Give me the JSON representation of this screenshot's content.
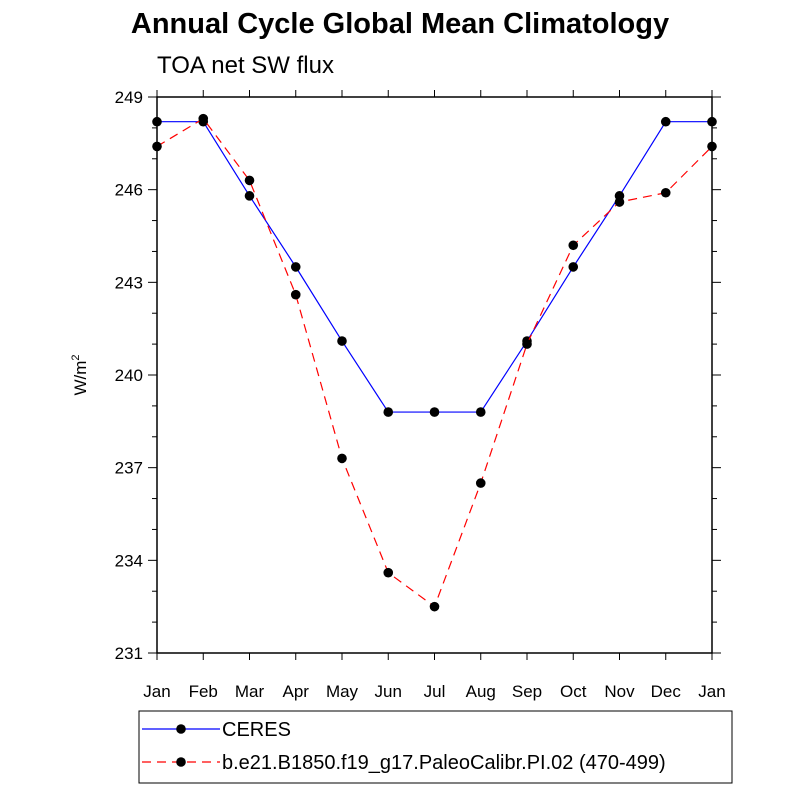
{
  "chart_data": {
    "type": "line",
    "title": "Annual Cycle Global Mean Climatology",
    "subtitle": "TOA net SW flux",
    "xlabel": "",
    "ylabel": "W/m",
    "ylabel_superscript": "2",
    "categories": [
      "Jan",
      "Feb",
      "Mar",
      "Apr",
      "May",
      "Jun",
      "Jul",
      "Aug",
      "Sep",
      "Oct",
      "Nov",
      "Dec",
      "Jan"
    ],
    "ylim": [
      231,
      249
    ],
    "yticks": [
      "231",
      "234",
      "237",
      "240",
      "243",
      "246",
      "249"
    ],
    "grid": false,
    "legend_position": "bottom",
    "series": [
      {
        "name": "CERES",
        "color": "#0000ff",
        "style": "solid",
        "marker": "circle",
        "values": [
          248.2,
          248.2,
          245.8,
          243.5,
          241.1,
          238.8,
          238.8,
          238.8,
          241.1,
          243.5,
          245.8,
          248.2,
          248.2
        ]
      },
      {
        "name": "b.e21.B1850.f19_g17.PaleoCalibr.PI.02 (470-499)",
        "color": "#ff0000",
        "style": "dashed",
        "marker": "circle",
        "values": [
          247.4,
          248.3,
          246.3,
          242.6,
          237.3,
          233.6,
          232.5,
          236.5,
          241.0,
          244.2,
          245.6,
          245.9,
          247.4
        ]
      }
    ]
  }
}
